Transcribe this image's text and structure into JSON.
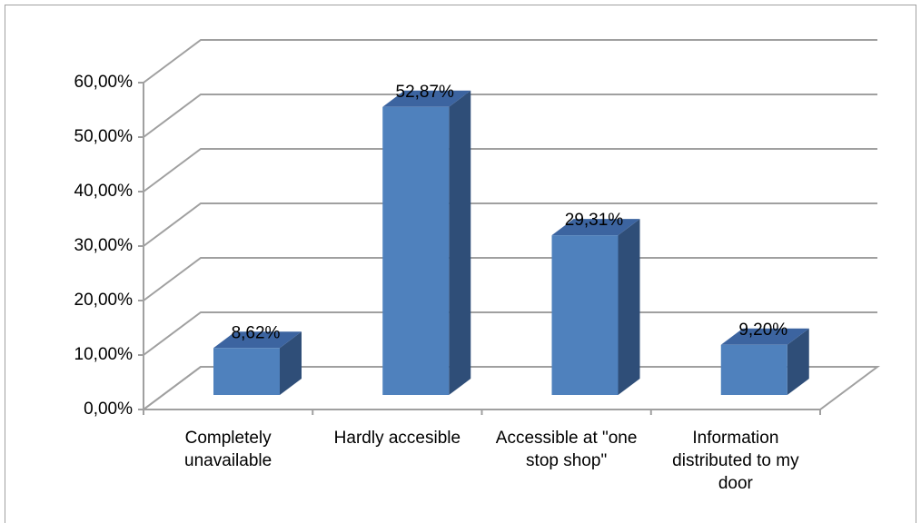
{
  "chart_data": {
    "type": "bar3d",
    "categories": [
      "Completely unavailable",
      "Hardly accesible",
      "Accessible at \"one stop shop\"",
      "Information distributed to my door"
    ],
    "values": [
      8.62,
      52.87,
      29.31,
      9.2
    ],
    "value_labels": [
      "8,62%",
      "52,87%",
      "29,31%",
      "9,20%"
    ],
    "color": "#4f81bd",
    "ylim": [
      0,
      60
    ],
    "yticks": [
      {
        "value": 0,
        "label": "0,00%"
      },
      {
        "value": 10,
        "label": "10,00%"
      },
      {
        "value": 20,
        "label": "20,00%"
      },
      {
        "value": 30,
        "label": "30,00%"
      },
      {
        "value": 40,
        "label": "40,00%"
      },
      {
        "value": 50,
        "label": "50,00%"
      },
      {
        "value": 60,
        "label": "60,00%"
      }
    ],
    "grid": true
  }
}
